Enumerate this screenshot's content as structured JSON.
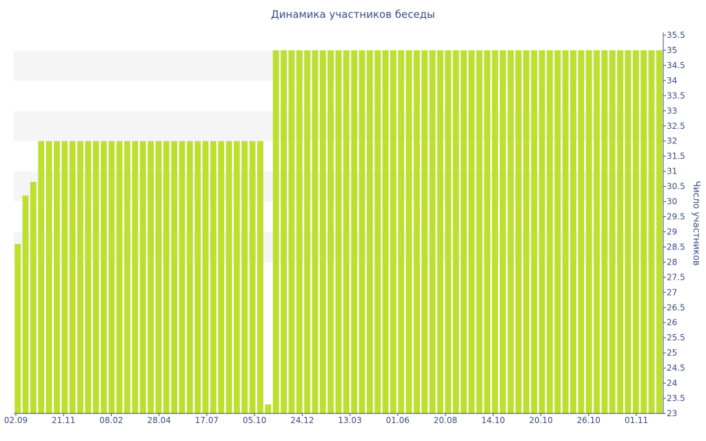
{
  "chart_data": {
    "type": "bar",
    "title": "Динамика участников беседы",
    "xlabel": "",
    "ylabel": "Число участников",
    "ylim": [
      23,
      35.5
    ],
    "y_ticks": [
      "23",
      "23.5",
      "24",
      "24.5",
      "25",
      "25.5",
      "26",
      "26.5",
      "27",
      "27.5",
      "28",
      "28.5",
      "29",
      "29.5",
      "30",
      "30.5",
      "31",
      "31.5",
      "32",
      "32.5",
      "33",
      "33.5",
      "34",
      "34.5",
      "35",
      "35.5"
    ],
    "x_tick_labels": [
      "02.09",
      "21.11",
      "08.02",
      "28.04",
      "17.07",
      "05.10",
      "24.12",
      "13.03",
      "01.06",
      "20.08",
      "14.10",
      "20.10",
      "26.10",
      "01.11"
    ],
    "bar_color": "#bddf2e",
    "grid": "horizontal bands",
    "values": [
      28.6,
      30.2,
      30.65,
      32,
      32,
      32,
      32,
      32,
      32,
      32,
      32,
      32,
      32,
      32,
      32,
      32,
      32,
      32,
      32,
      32,
      32,
      32,
      32,
      32,
      32,
      32,
      32,
      32,
      32,
      32,
      32,
      32,
      23.3,
      35,
      35,
      35,
      35,
      35,
      35,
      35,
      35,
      35,
      35,
      35,
      35,
      35,
      35,
      35,
      35,
      35,
      35,
      35,
      35,
      35,
      35,
      35,
      35,
      35,
      35,
      35,
      35,
      35,
      35,
      35,
      35,
      35,
      35,
      35,
      35,
      35,
      35,
      35,
      35,
      35,
      35,
      35,
      35,
      35,
      35,
      35,
      35,
      35,
      35
    ]
  }
}
